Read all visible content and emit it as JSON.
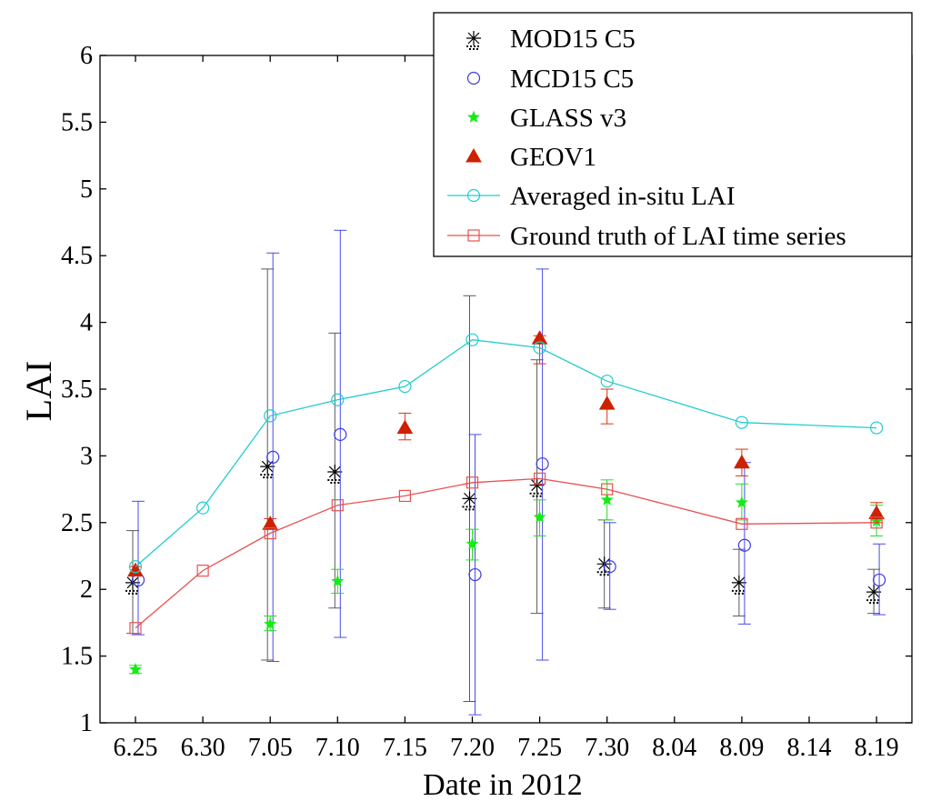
{
  "chart_data": {
    "type": "line",
    "title": "",
    "xlabel": "Date in 2012",
    "ylabel": "LAI",
    "ylim": [
      1,
      6
    ],
    "yticks": [
      "1",
      "1.5",
      "2",
      "2.5",
      "3",
      "3.5",
      "4",
      "4.5",
      "5",
      "5.5",
      "6"
    ],
    "categories": [
      "6.25",
      "6.30",
      "7.05",
      "7.10",
      "7.15",
      "7.20",
      "7.25",
      "7.30",
      "8.04",
      "8.09",
      "8.14",
      "8.19"
    ],
    "legend_position": "top-right",
    "series": [
      {
        "name": "MOD15 C5",
        "marker": "asterisk",
        "color": "#000000",
        "errbar_color": "#5a5a5a",
        "points": [
          {
            "x": "6.25",
            "y": 2.05,
            "low": 1.67,
            "high": 2.44
          },
          {
            "x": "7.05",
            "y": 2.92,
            "low": 1.47,
            "high": 4.4
          },
          {
            "x": "7.10",
            "y": 2.88,
            "low": 1.86,
            "high": 3.92
          },
          {
            "x": "7.20",
            "y": 2.68,
            "low": 1.16,
            "high": 4.2
          },
          {
            "x": "7.25",
            "y": 2.78,
            "low": 1.82,
            "high": 3.72
          },
          {
            "x": "7.30",
            "y": 2.19,
            "low": 1.86,
            "high": 2.52
          },
          {
            "x": "8.09",
            "y": 2.05,
            "low": 1.8,
            "high": 2.3
          },
          {
            "x": "8.19",
            "y": 1.98,
            "low": 1.82,
            "high": 2.15
          }
        ]
      },
      {
        "name": "MCD15 C5",
        "marker": "circle",
        "color": "#3a3ae8",
        "errbar_color": "#4a4aee",
        "points": [
          {
            "x": "6.25",
            "y": 2.07,
            "low": 1.66,
            "high": 2.66
          },
          {
            "x": "7.05",
            "y": 2.99,
            "low": 1.46,
            "high": 4.52
          },
          {
            "x": "7.10",
            "y": 3.16,
            "low": 1.64,
            "high": 4.69
          },
          {
            "x": "7.20",
            "y": 2.11,
            "low": 1.06,
            "high": 3.16
          },
          {
            "x": "7.25",
            "y": 2.94,
            "low": 1.47,
            "high": 4.4
          },
          {
            "x": "7.30",
            "y": 2.17,
            "low": 1.85,
            "high": 2.5
          },
          {
            "x": "8.09",
            "y": 2.33,
            "low": 1.74,
            "high": 2.95
          },
          {
            "x": "8.19",
            "y": 2.07,
            "low": 1.81,
            "high": 2.34
          }
        ]
      },
      {
        "name": "GLASS v3",
        "marker": "star",
        "color": "#11ee11",
        "errbar_color": "#22dd22",
        "points": [
          {
            "x": "6.25",
            "y": 1.4,
            "low": 1.37,
            "high": 1.43
          },
          {
            "x": "7.05",
            "y": 1.74,
            "low": 1.69,
            "high": 1.8
          },
          {
            "x": "7.10",
            "y": 2.06,
            "low": 1.97,
            "high": 2.15
          },
          {
            "x": "7.20",
            "y": 2.34,
            "low": 2.22,
            "high": 2.45
          },
          {
            "x": "7.25",
            "y": 2.54,
            "low": 2.4,
            "high": 2.67
          },
          {
            "x": "7.30",
            "y": 2.67,
            "low": 2.52,
            "high": 2.82
          },
          {
            "x": "8.09",
            "y": 2.65,
            "low": 2.52,
            "high": 2.79
          },
          {
            "x": "8.19",
            "y": 2.51,
            "low": 2.4,
            "high": 2.63
          }
        ]
      },
      {
        "name": "GEOV1",
        "marker": "triangle",
        "color": "#cc2200",
        "errbar_color": "#dd3311",
        "points": [
          {
            "x": "6.25",
            "y": 2.14,
            "low": 2.11,
            "high": 2.17
          },
          {
            "x": "7.05",
            "y": 2.49,
            "low": 2.45,
            "high": 2.53
          },
          {
            "x": "7.15",
            "y": 3.21,
            "low": 3.12,
            "high": 3.32
          },
          {
            "x": "7.25",
            "y": 3.88,
            "low": 3.69,
            "high": 3.9
          },
          {
            "x": "7.30",
            "y": 3.39,
            "low": 3.24,
            "high": 3.5
          },
          {
            "x": "8.09",
            "y": 2.95,
            "low": 2.85,
            "high": 3.05
          },
          {
            "x": "8.19",
            "y": 2.57,
            "low": 2.5,
            "high": 2.65
          }
        ]
      },
      {
        "name": "Averaged in-situ LAI",
        "marker": "circle",
        "color": "#22cccc",
        "line": true,
        "points": [
          {
            "x": "6.25",
            "y": 2.17
          },
          {
            "x": "6.30",
            "y": 2.61
          },
          {
            "x": "7.05",
            "y": 3.3
          },
          {
            "x": "7.10",
            "y": 3.42
          },
          {
            "x": "7.15",
            "y": 3.52
          },
          {
            "x": "7.20",
            "y": 3.87
          },
          {
            "x": "7.25",
            "y": 3.81
          },
          {
            "x": "7.30",
            "y": 3.56
          },
          {
            "x": "8.09",
            "y": 3.25
          },
          {
            "x": "8.19",
            "y": 3.21
          }
        ]
      },
      {
        "name": "Ground truth of LAI time series",
        "marker": "square",
        "color": "#e85050",
        "line": true,
        "points": [
          {
            "x": "6.25",
            "y": 1.71
          },
          {
            "x": "6.30",
            "y": 2.14
          },
          {
            "x": "7.05",
            "y": 2.42
          },
          {
            "x": "7.10",
            "y": 2.63
          },
          {
            "x": "7.15",
            "y": 2.7
          },
          {
            "x": "7.20",
            "y": 2.8
          },
          {
            "x": "7.25",
            "y": 2.83
          },
          {
            "x": "7.30",
            "y": 2.75
          },
          {
            "x": "8.09",
            "y": 2.49
          },
          {
            "x": "8.19",
            "y": 2.5
          }
        ]
      }
    ]
  }
}
